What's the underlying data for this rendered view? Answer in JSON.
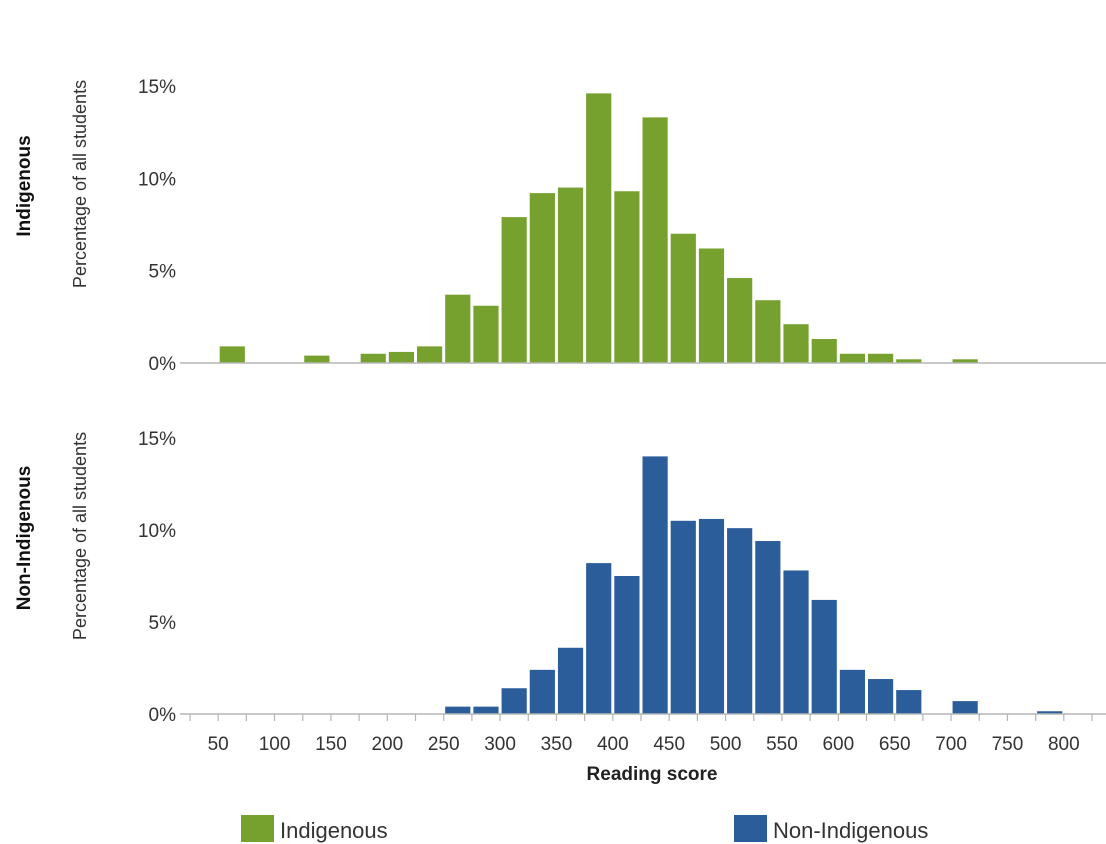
{
  "chart_data": {
    "type": "bar",
    "xlabel": "Reading score",
    "ylabel": "Percentage of all students",
    "ylim": [
      0,
      15
    ],
    "yticks": [
      "0%",
      "5%",
      "10%",
      "15%"
    ],
    "ytick_values": [
      0,
      5,
      10,
      15
    ],
    "x_ticks": [
      "50",
      "100",
      "150",
      "200",
      "250",
      "300",
      "350",
      "400",
      "450",
      "500",
      "550",
      "600",
      "650",
      "700",
      "750",
      "800"
    ],
    "x_tick_values": [
      50,
      100,
      150,
      200,
      250,
      300,
      350,
      400,
      450,
      500,
      550,
      600,
      650,
      700,
      750,
      800
    ],
    "xlim": [
      25,
      825
    ],
    "bin_width": 25,
    "bin_starts": [
      50,
      75,
      100,
      125,
      150,
      175,
      200,
      225,
      250,
      275,
      300,
      325,
      350,
      375,
      400,
      425,
      450,
      475,
      500,
      525,
      550,
      575,
      600,
      625,
      650,
      675,
      700,
      725,
      750,
      775
    ],
    "grid": false,
    "legend_position": "bottom",
    "series": [
      {
        "name": "Indigenous",
        "panel_label": "Indigenous",
        "color": "#76a12f",
        "values": [
          0.9,
          0,
          0,
          0.4,
          0,
          0.5,
          0.6,
          0.9,
          3.7,
          3.1,
          7.9,
          9.2,
          9.5,
          14.6,
          9.3,
          13.3,
          7.0,
          6.2,
          4.6,
          3.4,
          2.1,
          1.3,
          0.5,
          0.5,
          0.2,
          0,
          0.2,
          0,
          0,
          0
        ]
      },
      {
        "name": "Non-Indigenous",
        "panel_label": "Non-Indigenous",
        "color": "#2b5d9b",
        "values": [
          0,
          0,
          0,
          0,
          0,
          0,
          0,
          0,
          0.4,
          0.4,
          1.4,
          2.4,
          3.6,
          8.2,
          7.5,
          14.0,
          10.5,
          10.6,
          10.1,
          9.4,
          7.8,
          6.2,
          2.4,
          1.9,
          1.3,
          0,
          0.7,
          0,
          0,
          0.15
        ]
      }
    ]
  }
}
